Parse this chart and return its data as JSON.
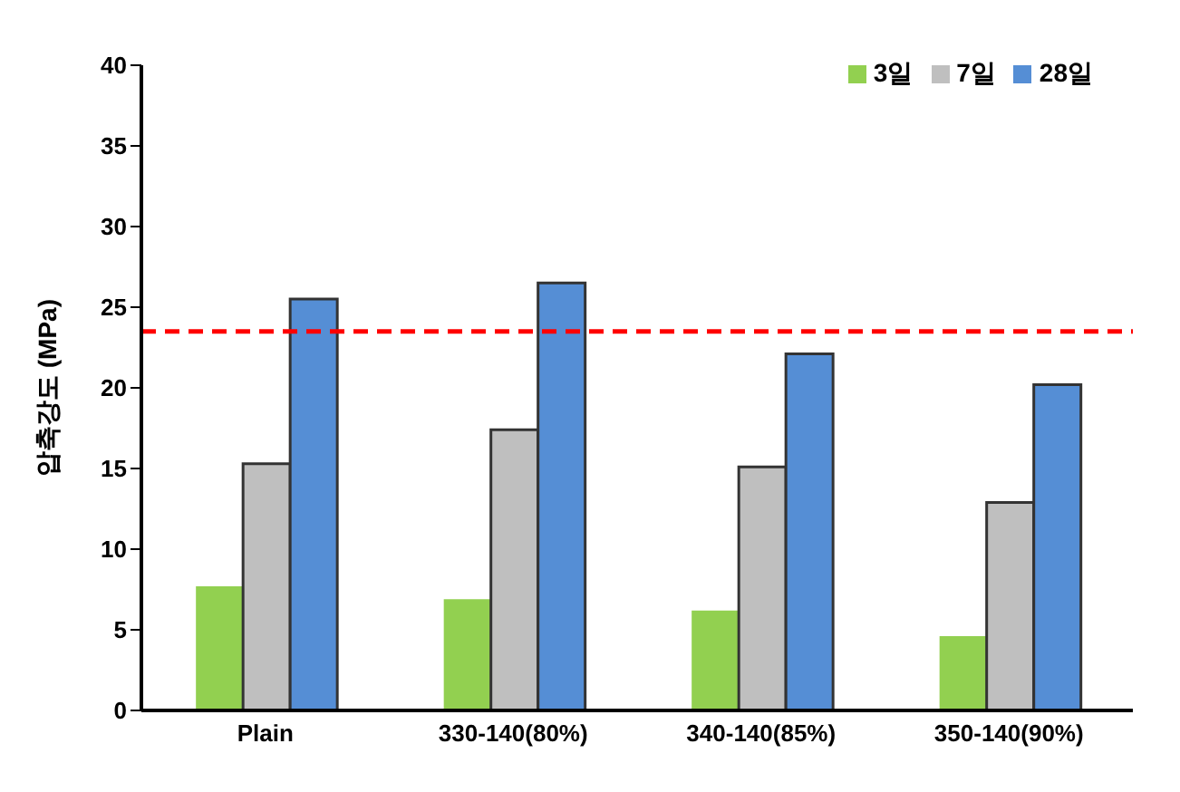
{
  "chart_data": {
    "type": "bar",
    "ylabel": "압축강도 (MPa)",
    "categories": [
      "Plain",
      "330-140(80%)",
      "340-140(85%)",
      "350-140(90%)"
    ],
    "series": [
      {
        "name": "3일",
        "color": "#92d050",
        "values": [
          7.7,
          6.9,
          6.2,
          4.6
        ]
      },
      {
        "name": "7일",
        "color": "#bfbfbf",
        "values": [
          15.3,
          17.4,
          15.1,
          12.9
        ]
      },
      {
        "name": "28일",
        "color": "#558ed5",
        "values": [
          25.5,
          26.5,
          22.1,
          20.2
        ]
      }
    ],
    "ylim": [
      0,
      40
    ],
    "yticks": [
      0,
      5,
      10,
      15,
      20,
      25,
      30,
      35,
      40
    ],
    "grid": false,
    "legend": "top right",
    "ref_lines": [
      {
        "axis": "y",
        "value": 23.5,
        "color": "#ff0000",
        "line_style": "dashed"
      }
    ]
  }
}
